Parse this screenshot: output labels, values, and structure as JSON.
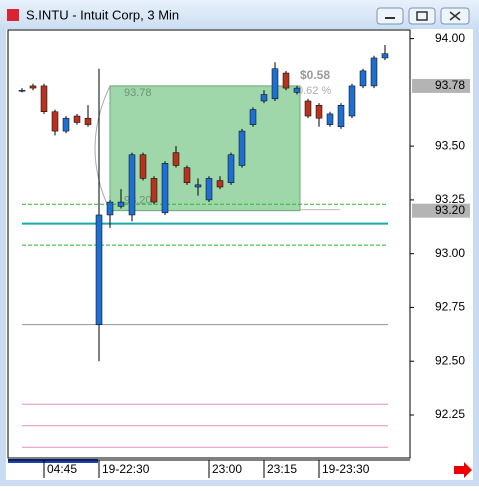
{
  "chart_data": {
    "type": "candlestick",
    "title": "S.INTU - Intuit Corp, 3 Min",
    "categories": [
      null,
      null,
      "04:45",
      null,
      null,
      null,
      null,
      "19-22:30",
      null,
      null,
      null,
      null,
      null,
      null,
      null,
      null,
      null,
      "23:00",
      null,
      null,
      null,
      null,
      "23:15",
      null,
      null,
      null,
      null,
      "19-23:30",
      null,
      null,
      null,
      null,
      null,
      null
    ],
    "open": [
      93.76,
      93.78,
      93.78,
      93.66,
      93.57,
      93.64,
      93.63,
      92.67,
      93.18,
      93.22,
      93.18,
      93.46,
      93.35,
      93.19,
      93.47,
      93.4,
      93.31,
      93.25,
      93.34,
      93.33,
      93.41,
      93.6,
      93.71,
      93.72,
      93.84,
      93.75,
      93.71,
      93.69,
      93.6,
      93.59,
      93.64,
      93.78,
      93.78,
      93.91
    ],
    "high": [
      93.77,
      93.79,
      93.79,
      93.67,
      93.64,
      93.65,
      93.69,
      93.86,
      93.25,
      93.3,
      93.47,
      93.47,
      93.36,
      93.43,
      93.5,
      93.41,
      93.35,
      93.36,
      93.36,
      93.47,
      93.58,
      93.68,
      93.76,
      93.89,
      93.85,
      93.78,
      93.72,
      93.7,
      93.66,
      93.7,
      93.79,
      93.86,
      93.92,
      93.97
    ],
    "low": [
      93.75,
      93.76,
      93.65,
      93.55,
      93.56,
      93.6,
      93.59,
      92.5,
      93.12,
      93.21,
      93.15,
      93.34,
      93.23,
      93.18,
      93.4,
      93.32,
      93.27,
      93.24,
      93.3,
      93.32,
      93.4,
      93.59,
      93.7,
      93.71,
      93.76,
      93.74,
      93.63,
      93.59,
      93.59,
      93.58,
      93.63,
      93.77,
      93.77,
      93.9
    ],
    "close": [
      93.76,
      93.77,
      93.66,
      93.57,
      93.63,
      93.61,
      93.6,
      93.18,
      93.24,
      93.24,
      93.46,
      93.35,
      93.24,
      93.42,
      93.41,
      93.33,
      93.32,
      93.35,
      93.31,
      93.46,
      93.57,
      93.67,
      93.74,
      93.86,
      93.77,
      93.77,
      93.64,
      93.63,
      93.65,
      93.69,
      93.78,
      93.85,
      93.91,
      93.93
    ],
    "up_color": "#1f6fd1",
    "down_color": "#b5341f",
    "ylim": [
      92.05,
      94.04
    ],
    "yticks": [
      {
        "value": 92.25,
        "label": "92.25"
      },
      {
        "value": 92.5,
        "label": "92.50"
      },
      {
        "value": 92.75,
        "label": "92.75"
      },
      {
        "value": 93,
        "label": "93.00"
      },
      {
        "value": 93.25,
        "label": "93.25"
      },
      {
        "value": 93.5,
        "label": "93.50"
      },
      {
        "value": 94,
        "label": "94.00"
      }
    ],
    "price_labels": [
      {
        "value": 93.78,
        "label": "93.78"
      },
      {
        "value": 93.2,
        "label": "93.20"
      }
    ],
    "levels": [
      {
        "value": 93.14,
        "color": "#1aa7b0",
        "dash": false
      },
      {
        "value": 93.23,
        "color": "#2db82d",
        "dash": true
      },
      {
        "value": 93.04,
        "color": "#2db82d",
        "dash": true
      },
      {
        "value": 92.67,
        "color": "#9a8fa0",
        "dash": false
      },
      {
        "value": 92.3,
        "color": "#e98cc8",
        "dash": false
      },
      {
        "value": 92.2,
        "color": "#e98cc8",
        "dash": false
      },
      {
        "value": 92.1,
        "color": "#e98cc8",
        "dash": false
      }
    ],
    "range_box": {
      "top": {
        "value": 93.78,
        "label": "93.78"
      },
      "bottom": {
        "value": 93.2,
        "label": "93.20"
      },
      "color": "#7fc98f",
      "change": "$0.58",
      "change_percent": "0.62 %"
    }
  }
}
